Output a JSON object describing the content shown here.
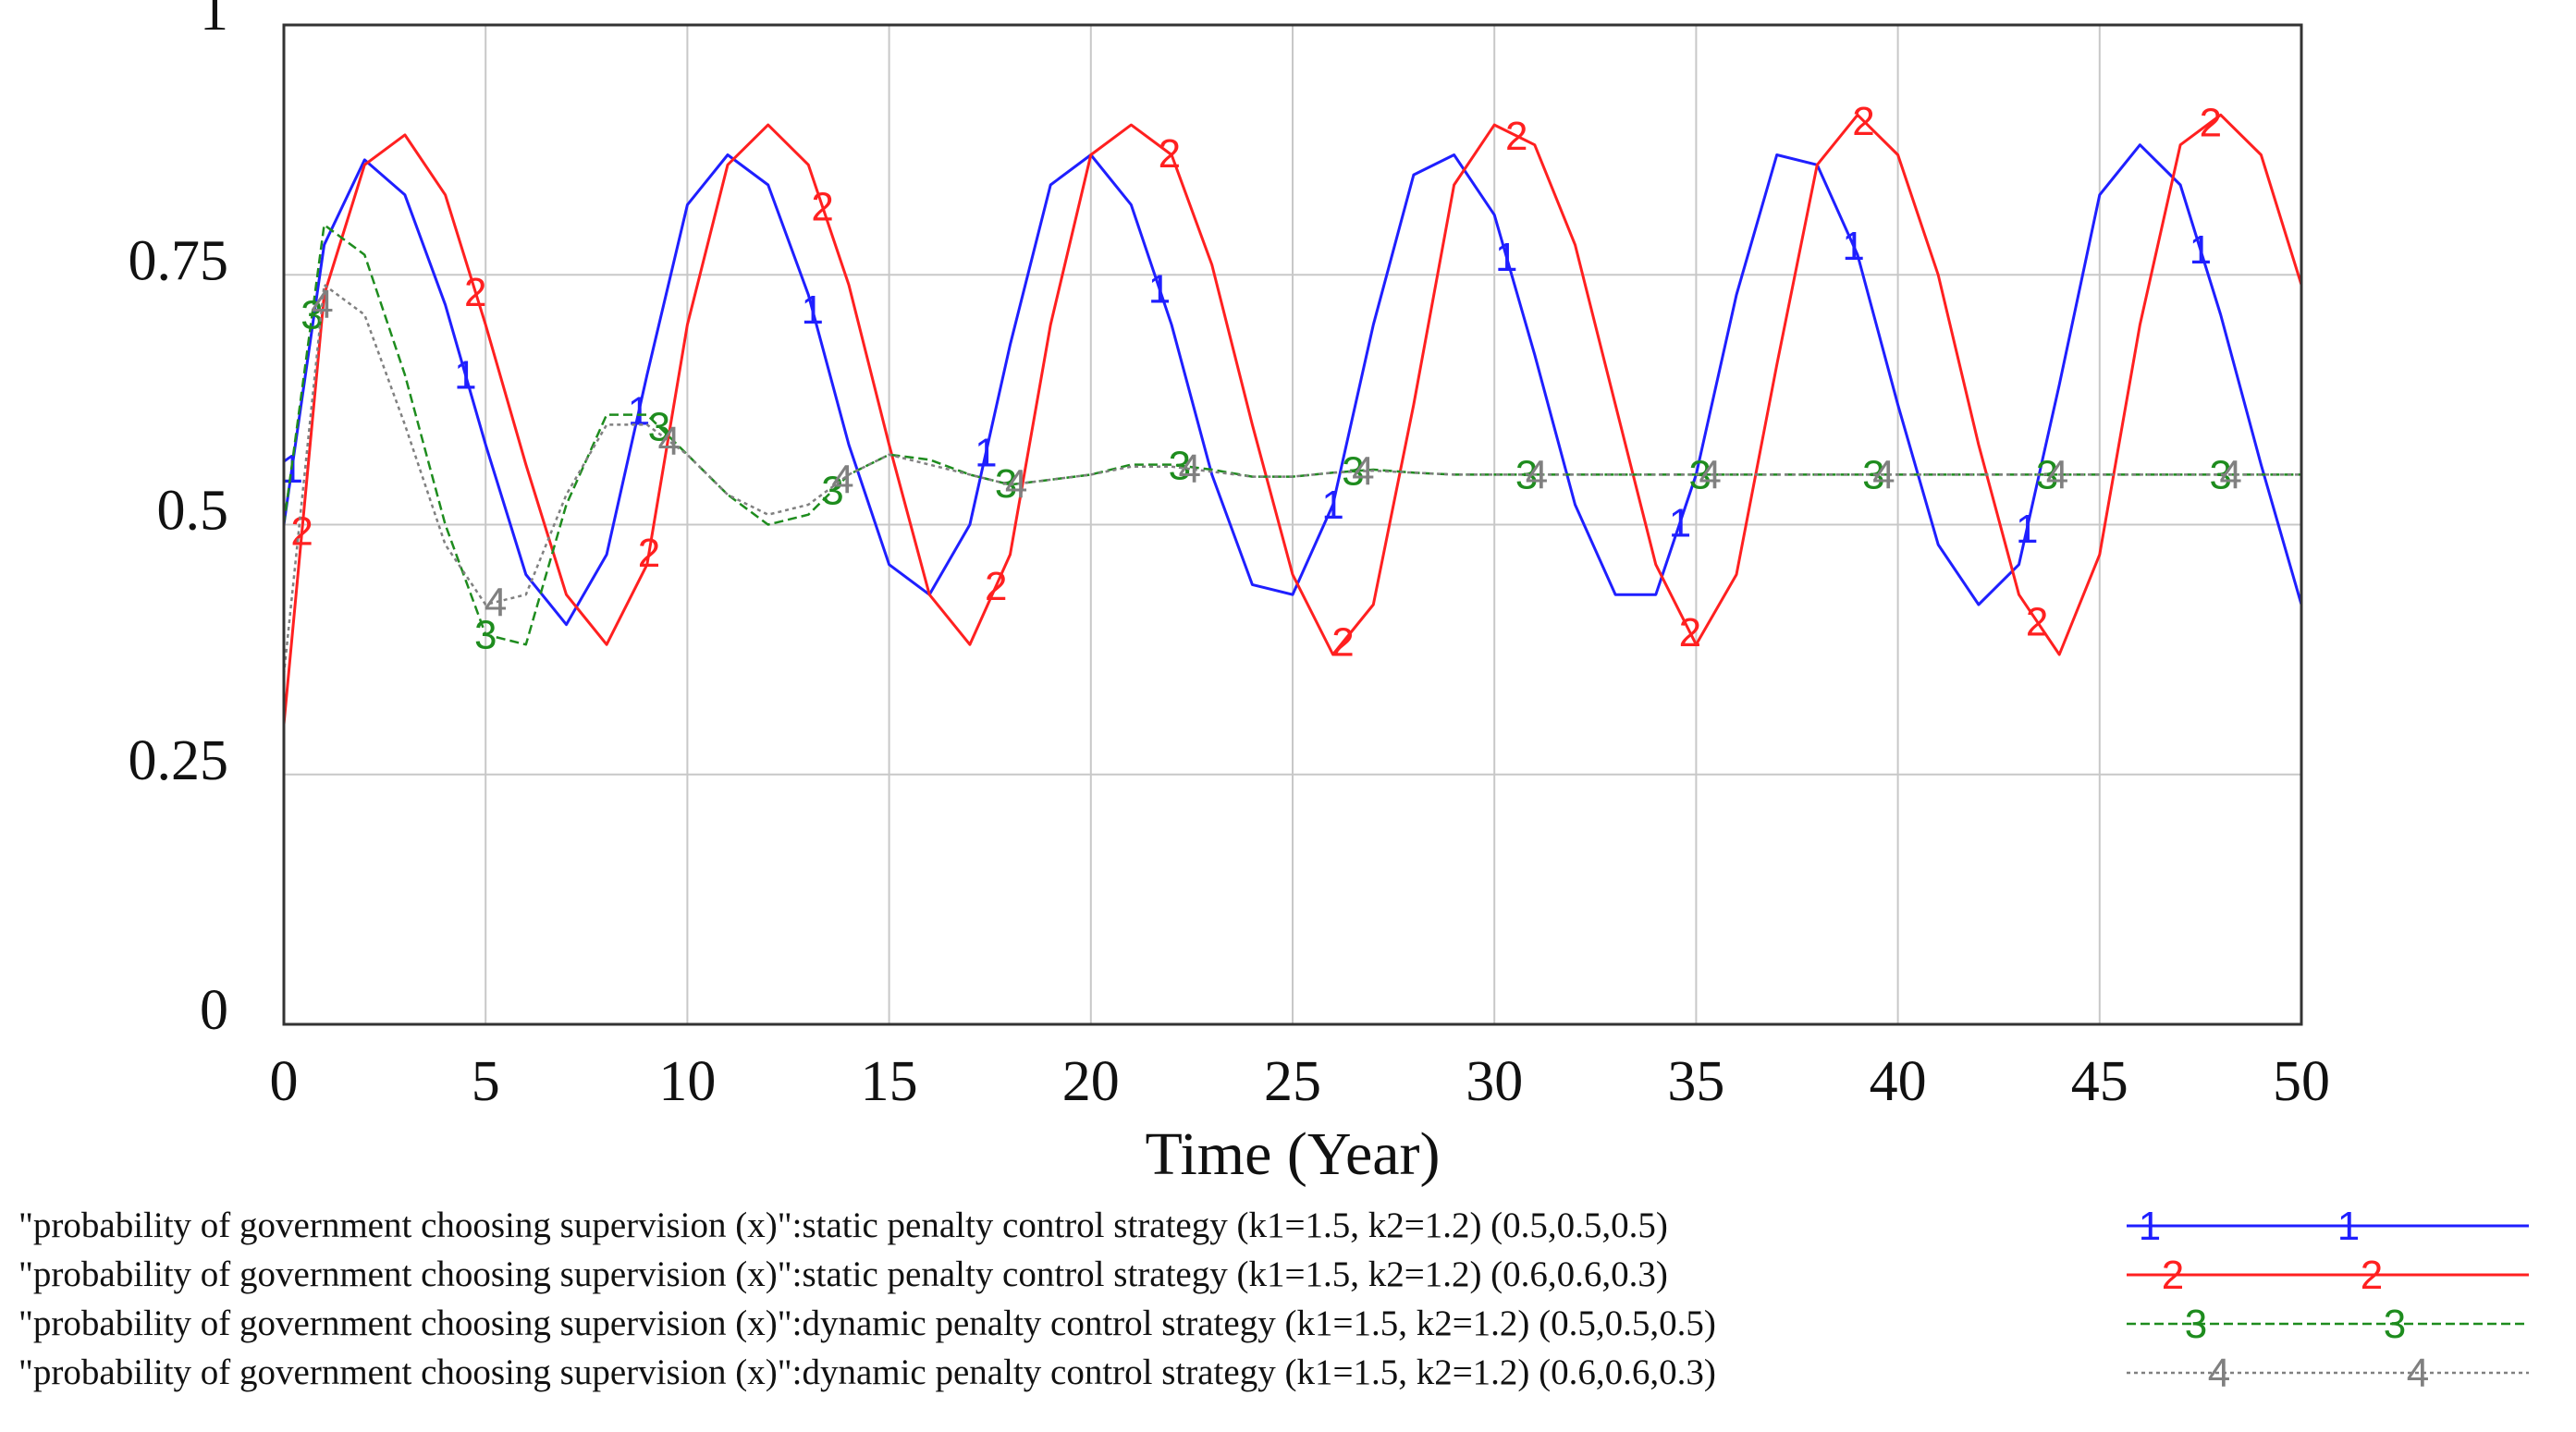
{
  "chart_data": {
    "type": "line",
    "title": "",
    "xlabel": "Time (Year)",
    "ylabel": "",
    "xlim": [
      0,
      50
    ],
    "ylim": [
      0,
      1
    ],
    "grid": true,
    "x_ticks": [
      "0",
      "5",
      "10",
      "15",
      "20",
      "25",
      "30",
      "35",
      "40",
      "45",
      "50"
    ],
    "y_ticks": [
      "0",
      "0.25",
      "0.5",
      "0.75",
      "1"
    ],
    "legend_position": "bottom",
    "series": [
      {
        "name": "\"probability of government choosing supervision (x)\":static penalty control strategy (k1=1.5, k2=1.2) (0.5,0.5,0.5)",
        "marker": "1",
        "color": "#1f1fff",
        "dash": "solid",
        "x": [
          0,
          1,
          2,
          3,
          4,
          5,
          6,
          7,
          8,
          9,
          10,
          11,
          12,
          13,
          14,
          15,
          16,
          17,
          18,
          19,
          20,
          21,
          22,
          23,
          24,
          25,
          26,
          27,
          28,
          29,
          30,
          31,
          32,
          33,
          34,
          35,
          36,
          37,
          38,
          39,
          40,
          41,
          42,
          43,
          44,
          45,
          46,
          47,
          48,
          49,
          50
        ],
        "y": [
          0.5,
          0.78,
          0.865,
          0.83,
          0.72,
          0.58,
          0.45,
          0.4,
          0.47,
          0.65,
          0.82,
          0.87,
          0.84,
          0.73,
          0.58,
          0.46,
          0.43,
          0.5,
          0.68,
          0.84,
          0.87,
          0.82,
          0.7,
          0.55,
          0.44,
          0.43,
          0.52,
          0.7,
          0.85,
          0.87,
          0.81,
          0.67,
          0.52,
          0.43,
          0.43,
          0.55,
          0.73,
          0.87,
          0.86,
          0.77,
          0.62,
          0.48,
          0.42,
          0.46,
          0.64,
          0.83,
          0.88,
          0.84,
          0.71,
          0.56,
          0.42
        ]
      },
      {
        "name": "\"probability of government choosing supervision (x)\":static penalty control strategy (k1=1.5, k2=1.2) (0.6,0.6,0.3)",
        "marker": "2",
        "color": "#ff2020",
        "dash": "solid",
        "x": [
          0,
          1,
          2,
          3,
          4,
          5,
          6,
          7,
          8,
          9,
          10,
          11,
          12,
          13,
          14,
          15,
          16,
          17,
          18,
          19,
          20,
          21,
          22,
          23,
          24,
          25,
          26,
          27,
          28,
          29,
          30,
          31,
          32,
          33,
          34,
          35,
          36,
          37,
          38,
          39,
          40,
          41,
          42,
          43,
          44,
          45,
          46,
          47,
          48,
          49,
          50
        ],
        "y": [
          0.3,
          0.73,
          0.86,
          0.89,
          0.83,
          0.7,
          0.56,
          0.43,
          0.38,
          0.46,
          0.7,
          0.86,
          0.9,
          0.86,
          0.74,
          0.58,
          0.43,
          0.38,
          0.47,
          0.7,
          0.87,
          0.9,
          0.87,
          0.76,
          0.6,
          0.45,
          0.37,
          0.42,
          0.62,
          0.84,
          0.9,
          0.88,
          0.78,
          0.62,
          0.46,
          0.38,
          0.45,
          0.66,
          0.86,
          0.91,
          0.87,
          0.75,
          0.58,
          0.43,
          0.37,
          0.47,
          0.7,
          0.88,
          0.91,
          0.87,
          0.74
        ]
      },
      {
        "name": "\"probability of government choosing supervision (x)\":dynamic penalty control strategy (k1=1.5, k2=1.2) (0.5,0.5,0.5)",
        "marker": "3",
        "color": "#1e8c1e",
        "dash": "dashed",
        "x": [
          0,
          1,
          2,
          3,
          4,
          5,
          6,
          7,
          8,
          9,
          10,
          11,
          12,
          13,
          14,
          15,
          16,
          17,
          18,
          19,
          20,
          21,
          22,
          23,
          24,
          25,
          26,
          27,
          28,
          29,
          30,
          31,
          32,
          33,
          34,
          35,
          36,
          37,
          38,
          39,
          40,
          41,
          42,
          43,
          44,
          45,
          46,
          47,
          48,
          49,
          50
        ],
        "y": [
          0.5,
          0.8,
          0.77,
          0.65,
          0.5,
          0.39,
          0.38,
          0.52,
          0.61,
          0.61,
          0.57,
          0.53,
          0.5,
          0.51,
          0.55,
          0.57,
          0.565,
          0.55,
          0.54,
          0.545,
          0.55,
          0.56,
          0.56,
          0.555,
          0.548,
          0.548,
          0.552,
          0.555,
          0.552,
          0.55,
          0.55,
          0.55,
          0.55,
          0.55,
          0.55,
          0.55,
          0.55,
          0.55,
          0.55,
          0.55,
          0.55,
          0.55,
          0.55,
          0.55,
          0.55,
          0.55,
          0.55,
          0.55,
          0.55,
          0.55,
          0.55
        ]
      },
      {
        "name": "\"probability of government choosing supervision (x)\":dynamic penalty control strategy (k1=1.5, k2=1.2) (0.6,0.6,0.3)",
        "marker": "4",
        "color": "#808080",
        "dash": "dotted",
        "x": [
          0,
          1,
          2,
          3,
          4,
          5,
          6,
          7,
          8,
          9,
          10,
          11,
          12,
          13,
          14,
          15,
          16,
          17,
          18,
          19,
          20,
          21,
          22,
          23,
          24,
          25,
          26,
          27,
          28,
          29,
          30,
          31,
          32,
          33,
          34,
          35,
          36,
          37,
          38,
          39,
          40,
          41,
          42,
          43,
          44,
          45,
          46,
          47,
          48,
          49,
          50
        ],
        "y": [
          0.35,
          0.74,
          0.71,
          0.6,
          0.48,
          0.42,
          0.43,
          0.53,
          0.6,
          0.6,
          0.57,
          0.53,
          0.51,
          0.52,
          0.55,
          0.57,
          0.56,
          0.55,
          0.54,
          0.545,
          0.55,
          0.558,
          0.558,
          0.553,
          0.548,
          0.548,
          0.552,
          0.554,
          0.552,
          0.55,
          0.55,
          0.55,
          0.55,
          0.55,
          0.55,
          0.55,
          0.55,
          0.55,
          0.55,
          0.55,
          0.55,
          0.55,
          0.55,
          0.55,
          0.55,
          0.55,
          0.55,
          0.55,
          0.55,
          0.55,
          0.55
        ]
      }
    ]
  }
}
